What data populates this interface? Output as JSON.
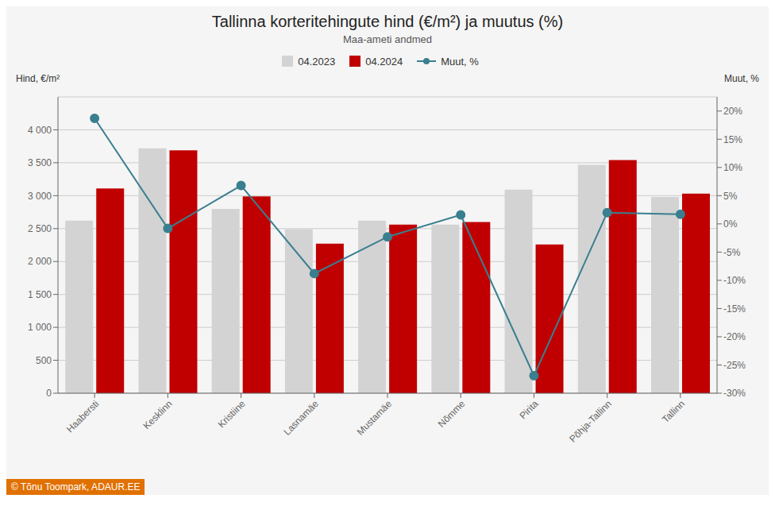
{
  "chart_data": {
    "type": "bar",
    "title": "Tallinna korteritehingute hind (€/m²) ja muutus (%)",
    "subtitle": "Maa-ameti andmed",
    "ylabel": "Hind, €/m²",
    "y2label": "Muut, %",
    "categories": [
      "Haabersti",
      "Kesklinn",
      "Kristiine",
      "Lasnamäe",
      "Mustamäe",
      "Nõmme",
      "Pirita",
      "Põhja-Tallinn",
      "Tallinn"
    ],
    "series": [
      {
        "name": "04.2023",
        "color": "#d3d3d3",
        "values": [
          2620,
          3720,
          2800,
          2490,
          2620,
          2560,
          3090,
          3470,
          2980
        ]
      },
      {
        "name": "04.2024",
        "color": "#c00000",
        "values": [
          3110,
          3690,
          2990,
          2270,
          2560,
          2600,
          2260,
          3540,
          3030
        ]
      },
      {
        "name": "Muut, %",
        "type": "line",
        "axis": "y2",
        "color": "#3a7f8f",
        "marker": "circle",
        "values": [
          18.7,
          -0.8,
          6.8,
          -8.8,
          -2.3,
          1.6,
          -26.9,
          2.0,
          1.7
        ]
      }
    ],
    "ylim": [
      0,
      4500
    ],
    "yticks": [
      0,
      500,
      {
        "value": 1000,
        "label": "1 000"
      },
      {
        "value": 1500,
        "label": "1 500"
      },
      {
        "value": 2000,
        "label": "2 000"
      },
      {
        "value": 2500,
        "label": "2 500"
      },
      {
        "value": 3000,
        "label": "3 000"
      },
      {
        "value": 3500,
        "label": "3 500"
      },
      {
        "value": 4000,
        "label": "4 000"
      }
    ],
    "y2lim": [
      -30,
      22.5
    ],
    "y2ticks": [
      {
        "value": -30,
        "label": "-30%"
      },
      {
        "value": -25,
        "label": "-25%"
      },
      {
        "value": -20,
        "label": "-20%"
      },
      {
        "value": -15,
        "label": "-15%"
      },
      {
        "value": -10,
        "label": "-10%"
      },
      {
        "value": -5,
        "label": "-5%"
      },
      {
        "value": 0,
        "label": "0%"
      },
      {
        "value": 5,
        "label": "5%"
      },
      {
        "value": 10,
        "label": "10%"
      },
      {
        "value": 15,
        "label": "15%"
      },
      {
        "value": 20,
        "label": "20%"
      }
    ],
    "grid": true,
    "legend": "top",
    "annotations": [
      "© Tõnu Toompark, ADAUR.EE"
    ]
  }
}
